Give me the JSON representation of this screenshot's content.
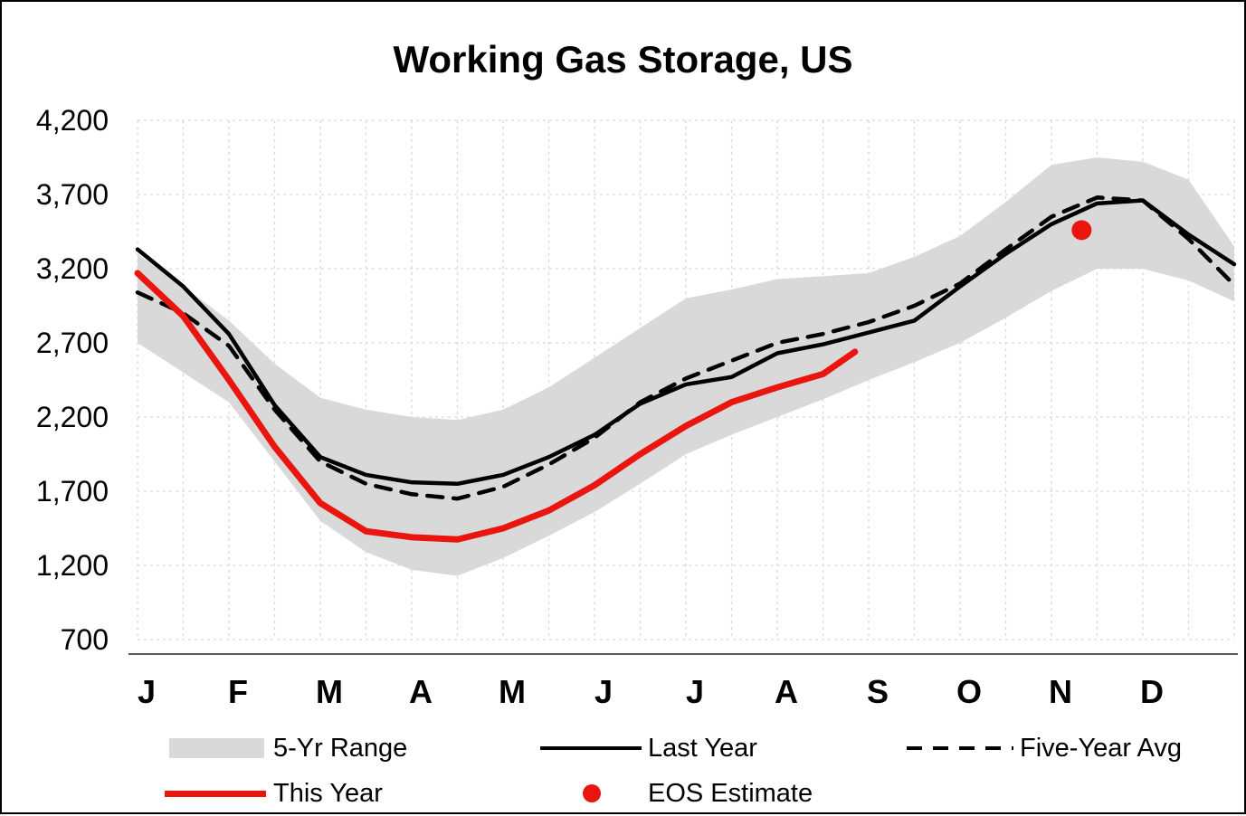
{
  "colors": {
    "band": "#d9d9d9",
    "grid": "#d9d9d9",
    "axis": "#595959",
    "black_line": "#000000",
    "red": "#ea150e",
    "text": "#000000"
  },
  "chart_data": {
    "type": "line",
    "title": "Working Gas Storage, US",
    "x_months": [
      "J",
      "F",
      "M",
      "A",
      "M",
      "J",
      "J",
      "A",
      "S",
      "O",
      "N",
      "D"
    ],
    "xlabel": "",
    "ylabel": "",
    "ylim": [
      700,
      4200
    ],
    "ytick_step": 500,
    "ytick_labels": [
      "700",
      "1,200",
      "1,700",
      "2,200",
      "2,700",
      "3,200",
      "3,700",
      "4,200"
    ],
    "grid": "dashed light gray, vertical every half month, horizontal every 500",
    "legend_position": "bottom",
    "series": [
      {
        "name": "5-Yr Range",
        "type": "band",
        "color": "#d9d9d9",
        "x": [
          0,
          0.5,
          1,
          1.5,
          2,
          2.5,
          3,
          3.5,
          4,
          4.5,
          5,
          5.5,
          6,
          6.5,
          7,
          7.5,
          8,
          8.5,
          9,
          9.5,
          10,
          10.5,
          11,
          11.5,
          12
        ],
        "upper": [
          3300,
          3080,
          2850,
          2560,
          2330,
          2250,
          2200,
          2180,
          2250,
          2400,
          2600,
          2800,
          3000,
          3060,
          3130,
          3150,
          3170,
          3280,
          3420,
          3650,
          3900,
          3950,
          3920,
          3800,
          3350
        ],
        "lower": [
          2700,
          2500,
          2300,
          1900,
          1500,
          1290,
          1170,
          1130,
          1250,
          1400,
          1560,
          1750,
          1950,
          2080,
          2200,
          2320,
          2450,
          2570,
          2700,
          2870,
          3050,
          3200,
          3200,
          3120,
          2980
        ]
      },
      {
        "name": "Last Year",
        "type": "line",
        "color": "#000000",
        "dash": false,
        "x": [
          0,
          0.5,
          1,
          1.5,
          2,
          2.5,
          3,
          3.5,
          4,
          4.5,
          5,
          5.5,
          6,
          6.5,
          7,
          7.5,
          8,
          8.5,
          9,
          9.5,
          10,
          10.5,
          11,
          11.5,
          12
        ],
        "values": [
          3330,
          3080,
          2760,
          2280,
          1930,
          1810,
          1760,
          1750,
          1810,
          1930,
          2080,
          2290,
          2420,
          2470,
          2630,
          2690,
          2770,
          2850,
          3080,
          3300,
          3500,
          3640,
          3660,
          3430,
          3230
        ]
      },
      {
        "name": "Five-Year Avg",
        "type": "line",
        "color": "#000000",
        "dash": true,
        "x": [
          0,
          0.5,
          1,
          1.5,
          2,
          2.5,
          3,
          3.5,
          4,
          4.5,
          5,
          5.5,
          6,
          6.5,
          7,
          7.5,
          8,
          8.5,
          9,
          9.5,
          10,
          10.5,
          11,
          11.5,
          12
        ],
        "values": [
          3040,
          2900,
          2680,
          2250,
          1900,
          1750,
          1680,
          1650,
          1730,
          1880,
          2060,
          2300,
          2460,
          2580,
          2700,
          2760,
          2840,
          2950,
          3100,
          3330,
          3550,
          3680,
          3660,
          3400,
          3090
        ]
      },
      {
        "name": "This Year",
        "type": "line",
        "color": "#ea150e",
        "dash": false,
        "x": [
          0,
          0.5,
          1,
          1.5,
          2,
          2.5,
          3,
          3.5,
          4,
          4.5,
          5,
          5.5,
          6,
          6.5,
          7,
          7.5,
          7.85
        ],
        "values": [
          3170,
          2880,
          2450,
          2000,
          1620,
          1430,
          1390,
          1375,
          1450,
          1570,
          1740,
          1950,
          2140,
          2300,
          2400,
          2490,
          2640
        ]
      },
      {
        "name": "EOS Estimate",
        "type": "point",
        "color": "#ea150e",
        "x": 10.33,
        "value": 3460
      }
    ],
    "legend": [
      {
        "label": "5-Yr Range",
        "swatch": "gray-band"
      },
      {
        "label": "Last Year",
        "swatch": "solid-black-line"
      },
      {
        "label": "Five-Year Avg",
        "swatch": "dashed-black-line"
      },
      {
        "label": "This Year",
        "swatch": "solid-red-line"
      },
      {
        "label": "EOS Estimate",
        "swatch": "red-dot"
      }
    ]
  }
}
